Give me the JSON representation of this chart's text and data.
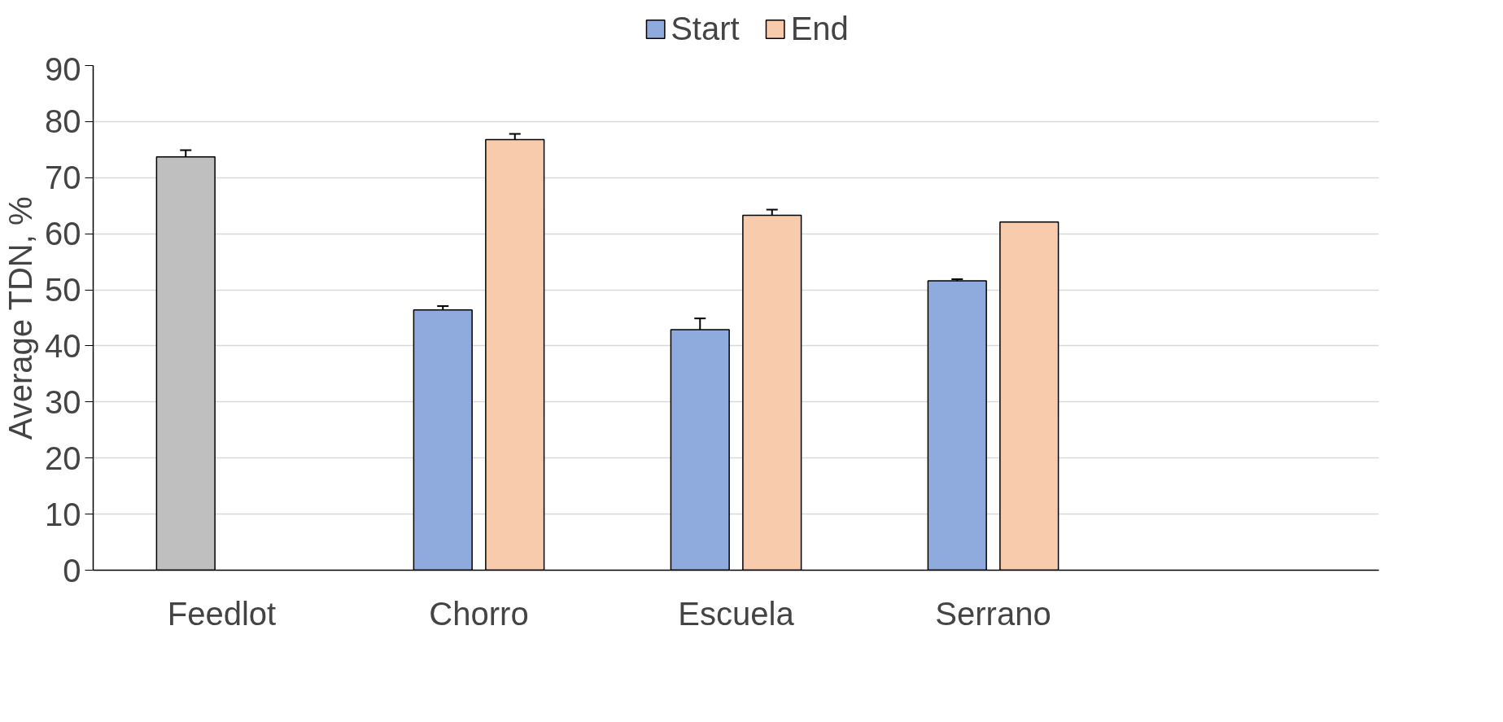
{
  "chart_data": {
    "type": "bar",
    "ylabel": "Average TDN, %",
    "categories": [
      "Feedlot",
      "Chorro",
      "Escuela",
      "Serrano",
      null
    ],
    "series": [
      {
        "name": "Start",
        "color": "#8faadc",
        "colors": [
          "#bfbfbf",
          "#8faadc",
          "#8faadc",
          "#8faadc",
          "#8faadc"
        ],
        "values": [
          73.7,
          46.4,
          42.9,
          51.6,
          null
        ],
        "errors": [
          1.2,
          0.7,
          2.0,
          0.3,
          null
        ]
      },
      {
        "name": "End",
        "color": "#f8cbad",
        "values": [
          null,
          76.8,
          63.3,
          62.1,
          null
        ],
        "errors": [
          null,
          1.0,
          1.0,
          null,
          null
        ]
      }
    ],
    "ylim": [
      0,
      90
    ],
    "yticks": [
      0,
      10,
      20,
      30,
      40,
      50,
      60,
      70,
      80,
      90
    ],
    "grid": "y",
    "legend": "top"
  }
}
